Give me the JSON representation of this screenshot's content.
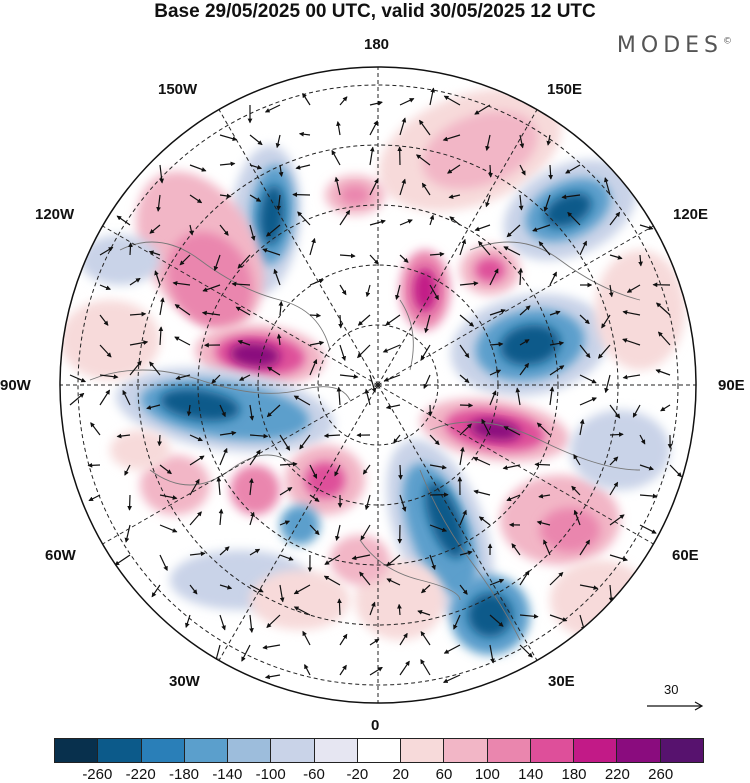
{
  "title": "Base 29/05/2025 00 UTC, valid 30/05/2025 12 UTC",
  "brand": "MODES",
  "brand_mark": "©",
  "longitude_labels": {
    "top": "180",
    "bottom": "0",
    "left": "90W",
    "right": "90E",
    "nw_high": "150W",
    "nw_low": "120W",
    "ne_high": "150E",
    "ne_low": "120E",
    "sw_high": "60W",
    "sw_low": "30W",
    "se_high": "60E",
    "se_low": "30E"
  },
  "reference_vector": {
    "value": "30"
  },
  "colorbar": {
    "colors": [
      "#08304d",
      "#0c5a8a",
      "#2a7fb8",
      "#5b9fcc",
      "#9dbddc",
      "#c9d3e8",
      "#e6e6f2",
      "#ffffff",
      "#f7dada",
      "#f2b6c6",
      "#ea86ae",
      "#de4f9a",
      "#c21a87",
      "#8a0c7e",
      "#57126e"
    ],
    "ticks": [
      "-260",
      "-220",
      "-180",
      "-140",
      "-100",
      "-60",
      "-20",
      "20",
      "60",
      "100",
      "140",
      "180",
      "220",
      "260"
    ]
  }
}
